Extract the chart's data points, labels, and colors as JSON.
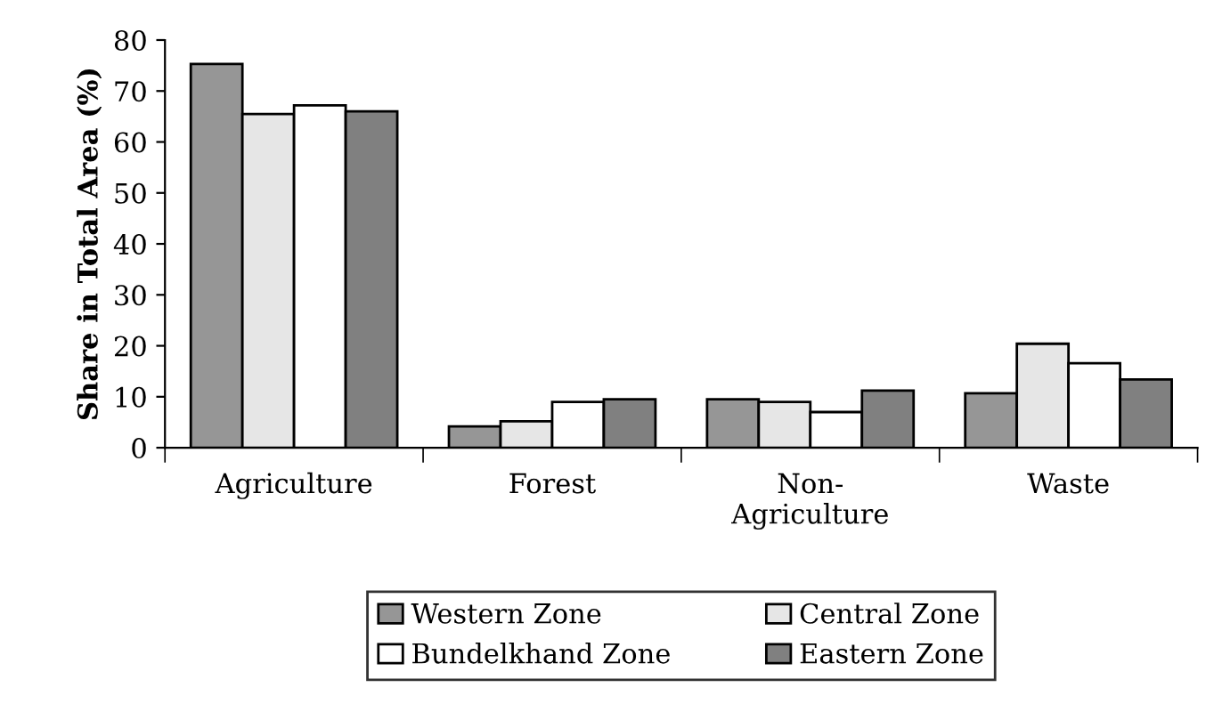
{
  "chart_data": {
    "type": "bar",
    "ylabel": "Share in Total Area (%)",
    "categories": [
      "Agriculture",
      "Forest",
      "Non-\nAgriculture",
      "Waste"
    ],
    "series": [
      {
        "name": "Western Zone",
        "color": "#969696",
        "values": [
          75.3,
          4.2,
          9.5,
          10.7
        ]
      },
      {
        "name": "Central Zone",
        "color": "#e6e6e6",
        "values": [
          65.5,
          5.2,
          9.0,
          20.4
        ]
      },
      {
        "name": "Bundelkhand Zone",
        "color": "#ffffff",
        "values": [
          67.2,
          9.0,
          7.0,
          16.6
        ]
      },
      {
        "name": "Eastern Zone",
        "color": "#808080",
        "values": [
          66.0,
          9.5,
          11.2,
          13.4
        ]
      }
    ],
    "ylim": [
      0,
      80
    ],
    "yticks": [
      0,
      10,
      20,
      30,
      40,
      50,
      60,
      70,
      80
    ],
    "grid": false,
    "legend": "bottom"
  }
}
